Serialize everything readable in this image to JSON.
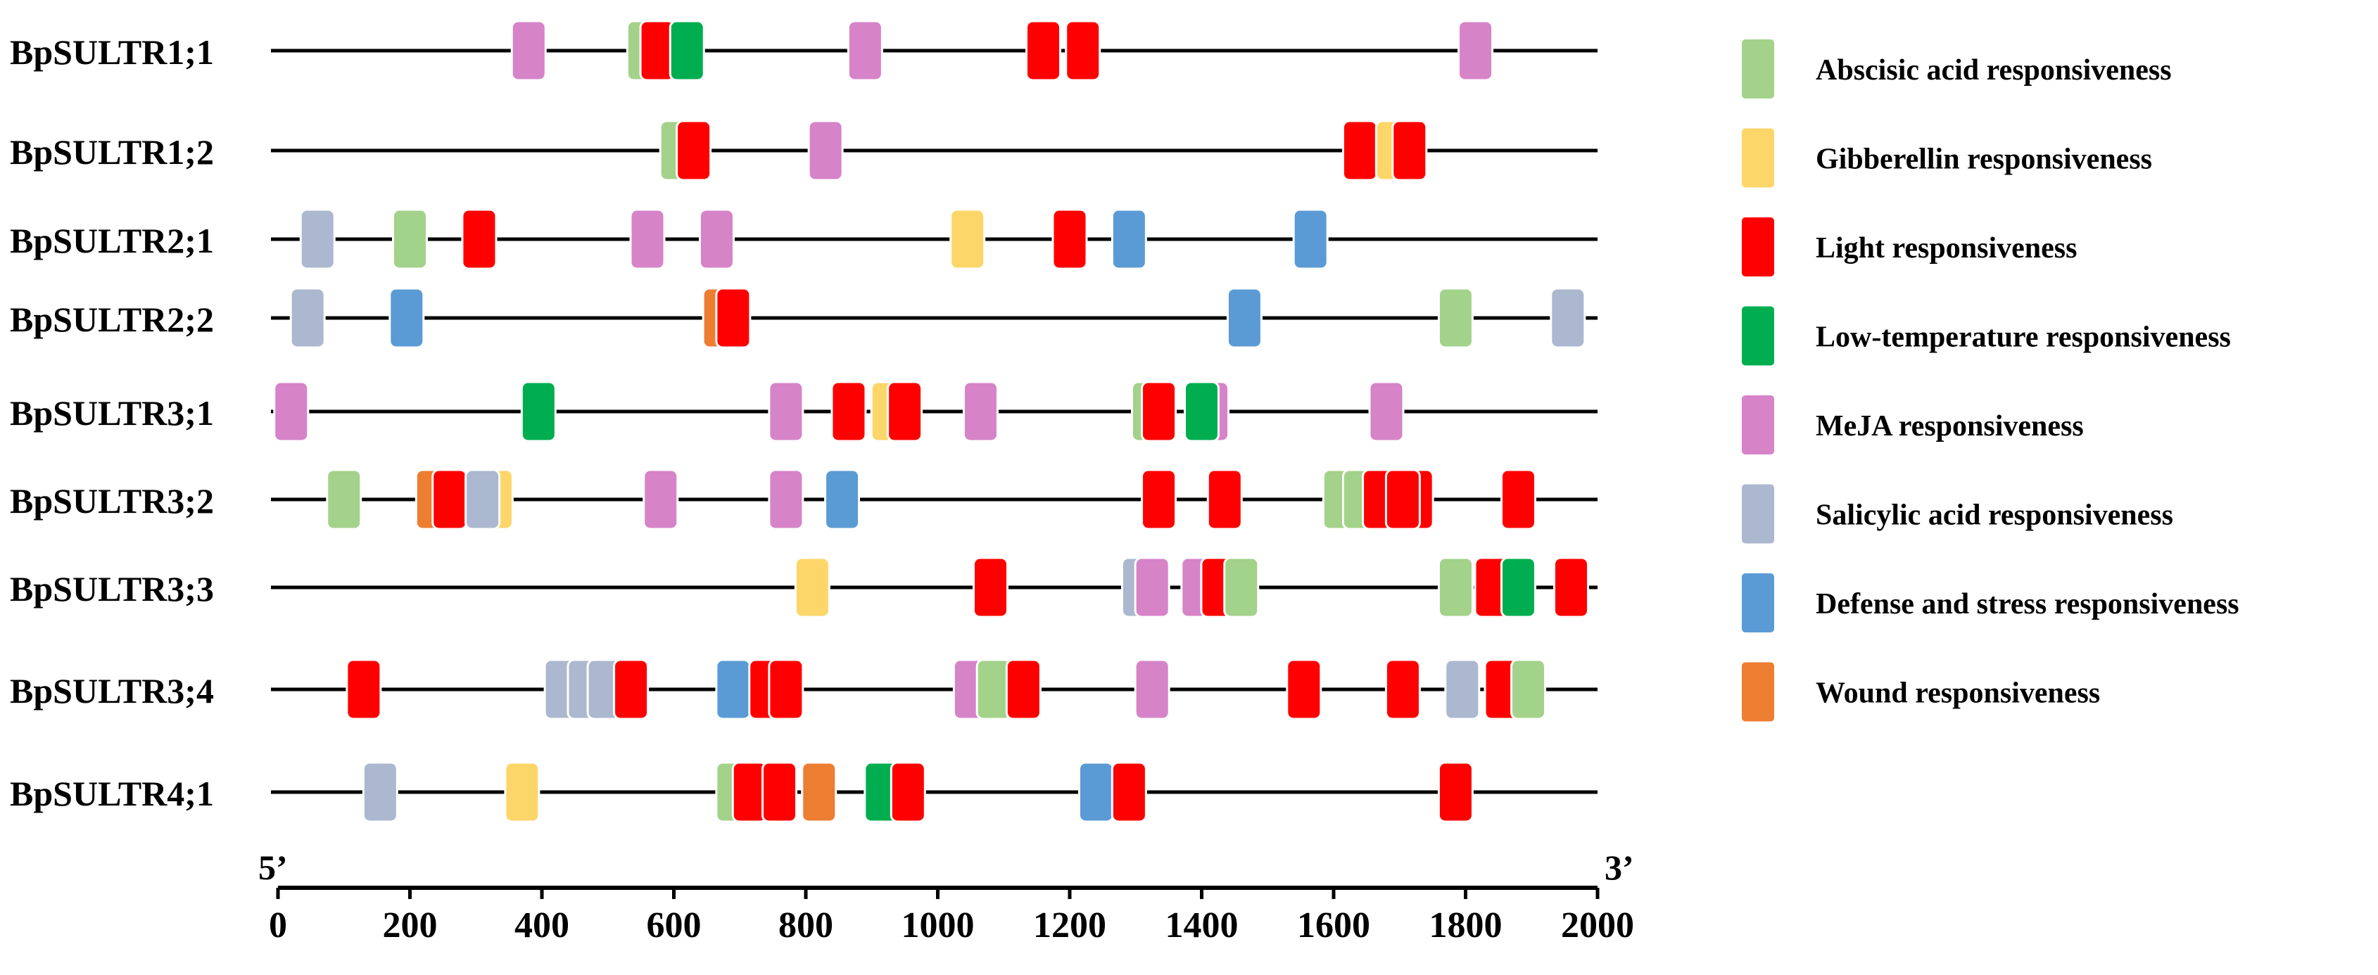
{
  "chart_data": {
    "type": "gene-promoter-element-map",
    "axis": {
      "min": 0,
      "max": 2000,
      "ticks": [
        0,
        200,
        400,
        600,
        800,
        1000,
        1200,
        1400,
        1600,
        1800,
        2000
      ],
      "start_label": "5’",
      "end_label": "3’"
    },
    "categories": [
      {
        "key": "aba",
        "name": "Abscisic acid responsiveness",
        "color": "#a3d28a"
      },
      {
        "key": "ga",
        "name": "Gibberellin responsiveness",
        "color": "#fdd66a"
      },
      {
        "key": "light",
        "name": "Light responsiveness",
        "color": "#fe0000"
      },
      {
        "key": "lt",
        "name": "Low-temperature responsiveness",
        "color": "#00ae4f"
      },
      {
        "key": "meja",
        "name": "MeJA responsiveness",
        "color": "#d683c8"
      },
      {
        "key": "sa",
        "name": "Salicylic acid responsiveness",
        "color": "#abb8cf"
      },
      {
        "key": "defense",
        "name": "Defense and stress responsiveness",
        "color": "#5b9bd5"
      },
      {
        "key": "wound",
        "name": "Wound responsiveness",
        "color": "#ed7d31"
      }
    ],
    "genes": [
      {
        "name": "BpSULTR1;1",
        "elements": [
          {
            "pos": 380,
            "type": "meja"
          },
          {
            "pos": 555,
            "type": "aba"
          },
          {
            "pos": 575,
            "type": "light"
          },
          {
            "pos": 620,
            "type": "lt"
          },
          {
            "pos": 890,
            "type": "meja"
          },
          {
            "pos": 1160,
            "type": "light"
          },
          {
            "pos": 1220,
            "type": "light"
          },
          {
            "pos": 1815,
            "type": "meja"
          }
        ]
      },
      {
        "name": "BpSULTR1;2",
        "elements": [
          {
            "pos": 605,
            "type": "aba"
          },
          {
            "pos": 630,
            "type": "light"
          },
          {
            "pos": 830,
            "type": "meja"
          },
          {
            "pos": 1640,
            "type": "light"
          },
          {
            "pos": 1690,
            "type": "ga"
          },
          {
            "pos": 1715,
            "type": "light"
          }
        ]
      },
      {
        "name": "BpSULTR2;1",
        "elements": [
          {
            "pos": 60,
            "type": "sa"
          },
          {
            "pos": 200,
            "type": "aba"
          },
          {
            "pos": 305,
            "type": "light"
          },
          {
            "pos": 560,
            "type": "meja"
          },
          {
            "pos": 665,
            "type": "meja"
          },
          {
            "pos": 1045,
            "type": "ga"
          },
          {
            "pos": 1200,
            "type": "light"
          },
          {
            "pos": 1290,
            "type": "defense"
          },
          {
            "pos": 1565,
            "type": "defense"
          }
        ]
      },
      {
        "name": "BpSULTR2;2",
        "elements": [
          {
            "pos": 45,
            "type": "sa"
          },
          {
            "pos": 195,
            "type": "defense"
          },
          {
            "pos": 670,
            "type": "wound"
          },
          {
            "pos": 690,
            "type": "light"
          },
          {
            "pos": 1465,
            "type": "defense"
          },
          {
            "pos": 1785,
            "type": "aba"
          },
          {
            "pos": 1955,
            "type": "sa"
          }
        ]
      },
      {
        "name": "BpSULTR3;1",
        "elements": [
          {
            "pos": 20,
            "type": "meja"
          },
          {
            "pos": 395,
            "type": "lt"
          },
          {
            "pos": 770,
            "type": "meja"
          },
          {
            "pos": 865,
            "type": "light"
          },
          {
            "pos": 925,
            "type": "ga"
          },
          {
            "pos": 950,
            "type": "light"
          },
          {
            "pos": 1065,
            "type": "meja"
          },
          {
            "pos": 1320,
            "type": "aba"
          },
          {
            "pos": 1335,
            "type": "light"
          },
          {
            "pos": 1415,
            "type": "meja"
          },
          {
            "pos": 1400,
            "type": "lt"
          },
          {
            "pos": 1680,
            "type": "meja"
          }
        ]
      },
      {
        "name": "BpSULTR3;2",
        "elements": [
          {
            "pos": 100,
            "type": "aba"
          },
          {
            "pos": 235,
            "type": "wound"
          },
          {
            "pos": 260,
            "type": "light"
          },
          {
            "pos": 330,
            "type": "ga"
          },
          {
            "pos": 310,
            "type": "sa"
          },
          {
            "pos": 580,
            "type": "meja"
          },
          {
            "pos": 770,
            "type": "meja"
          },
          {
            "pos": 855,
            "type": "defense"
          },
          {
            "pos": 1335,
            "type": "light"
          },
          {
            "pos": 1435,
            "type": "light"
          },
          {
            "pos": 1610,
            "type": "aba"
          },
          {
            "pos": 1640,
            "type": "aba"
          },
          {
            "pos": 1670,
            "type": "light"
          },
          {
            "pos": 1725,
            "type": "light"
          },
          {
            "pos": 1705,
            "type": "light"
          },
          {
            "pos": 1880,
            "type": "light"
          }
        ]
      },
      {
        "name": "BpSULTR3;3",
        "elements": [
          {
            "pos": 810,
            "type": "ga"
          },
          {
            "pos": 1080,
            "type": "light"
          },
          {
            "pos": 1305,
            "type": "sa"
          },
          {
            "pos": 1325,
            "type": "meja"
          },
          {
            "pos": 1395,
            "type": "meja"
          },
          {
            "pos": 1425,
            "type": "light"
          },
          {
            "pos": 1460,
            "type": "aba"
          },
          {
            "pos": 1785,
            "type": "aba"
          },
          {
            "pos": 1840,
            "type": "light"
          },
          {
            "pos": 1880,
            "type": "lt"
          },
          {
            "pos": 1960,
            "type": "light"
          }
        ]
      },
      {
        "name": "BpSULTR3;4",
        "elements": [
          {
            "pos": 130,
            "type": "light"
          },
          {
            "pos": 430,
            "type": "sa"
          },
          {
            "pos": 465,
            "type": "sa"
          },
          {
            "pos": 495,
            "type": "sa"
          },
          {
            "pos": 535,
            "type": "light"
          },
          {
            "pos": 690,
            "type": "defense"
          },
          {
            "pos": 740,
            "type": "light"
          },
          {
            "pos": 770,
            "type": "light"
          },
          {
            "pos": 1050,
            "type": "meja"
          },
          {
            "pos": 1085,
            "type": "aba"
          },
          {
            "pos": 1130,
            "type": "light"
          },
          {
            "pos": 1325,
            "type": "meja"
          },
          {
            "pos": 1555,
            "type": "light"
          },
          {
            "pos": 1705,
            "type": "light"
          },
          {
            "pos": 1795,
            "type": "sa"
          },
          {
            "pos": 1855,
            "type": "light"
          },
          {
            "pos": 1895,
            "type": "aba"
          }
        ]
      },
      {
        "name": "BpSULTR4;1",
        "elements": [
          {
            "pos": 155,
            "type": "sa"
          },
          {
            "pos": 370,
            "type": "ga"
          },
          {
            "pos": 690,
            "type": "aba"
          },
          {
            "pos": 715,
            "type": "light"
          },
          {
            "pos": 760,
            "type": "light"
          },
          {
            "pos": 820,
            "type": "wound"
          },
          {
            "pos": 915,
            "type": "lt"
          },
          {
            "pos": 955,
            "type": "light"
          },
          {
            "pos": 1240,
            "type": "defense"
          },
          {
            "pos": 1290,
            "type": "light"
          },
          {
            "pos": 1785,
            "type": "light"
          }
        ]
      }
    ]
  }
}
